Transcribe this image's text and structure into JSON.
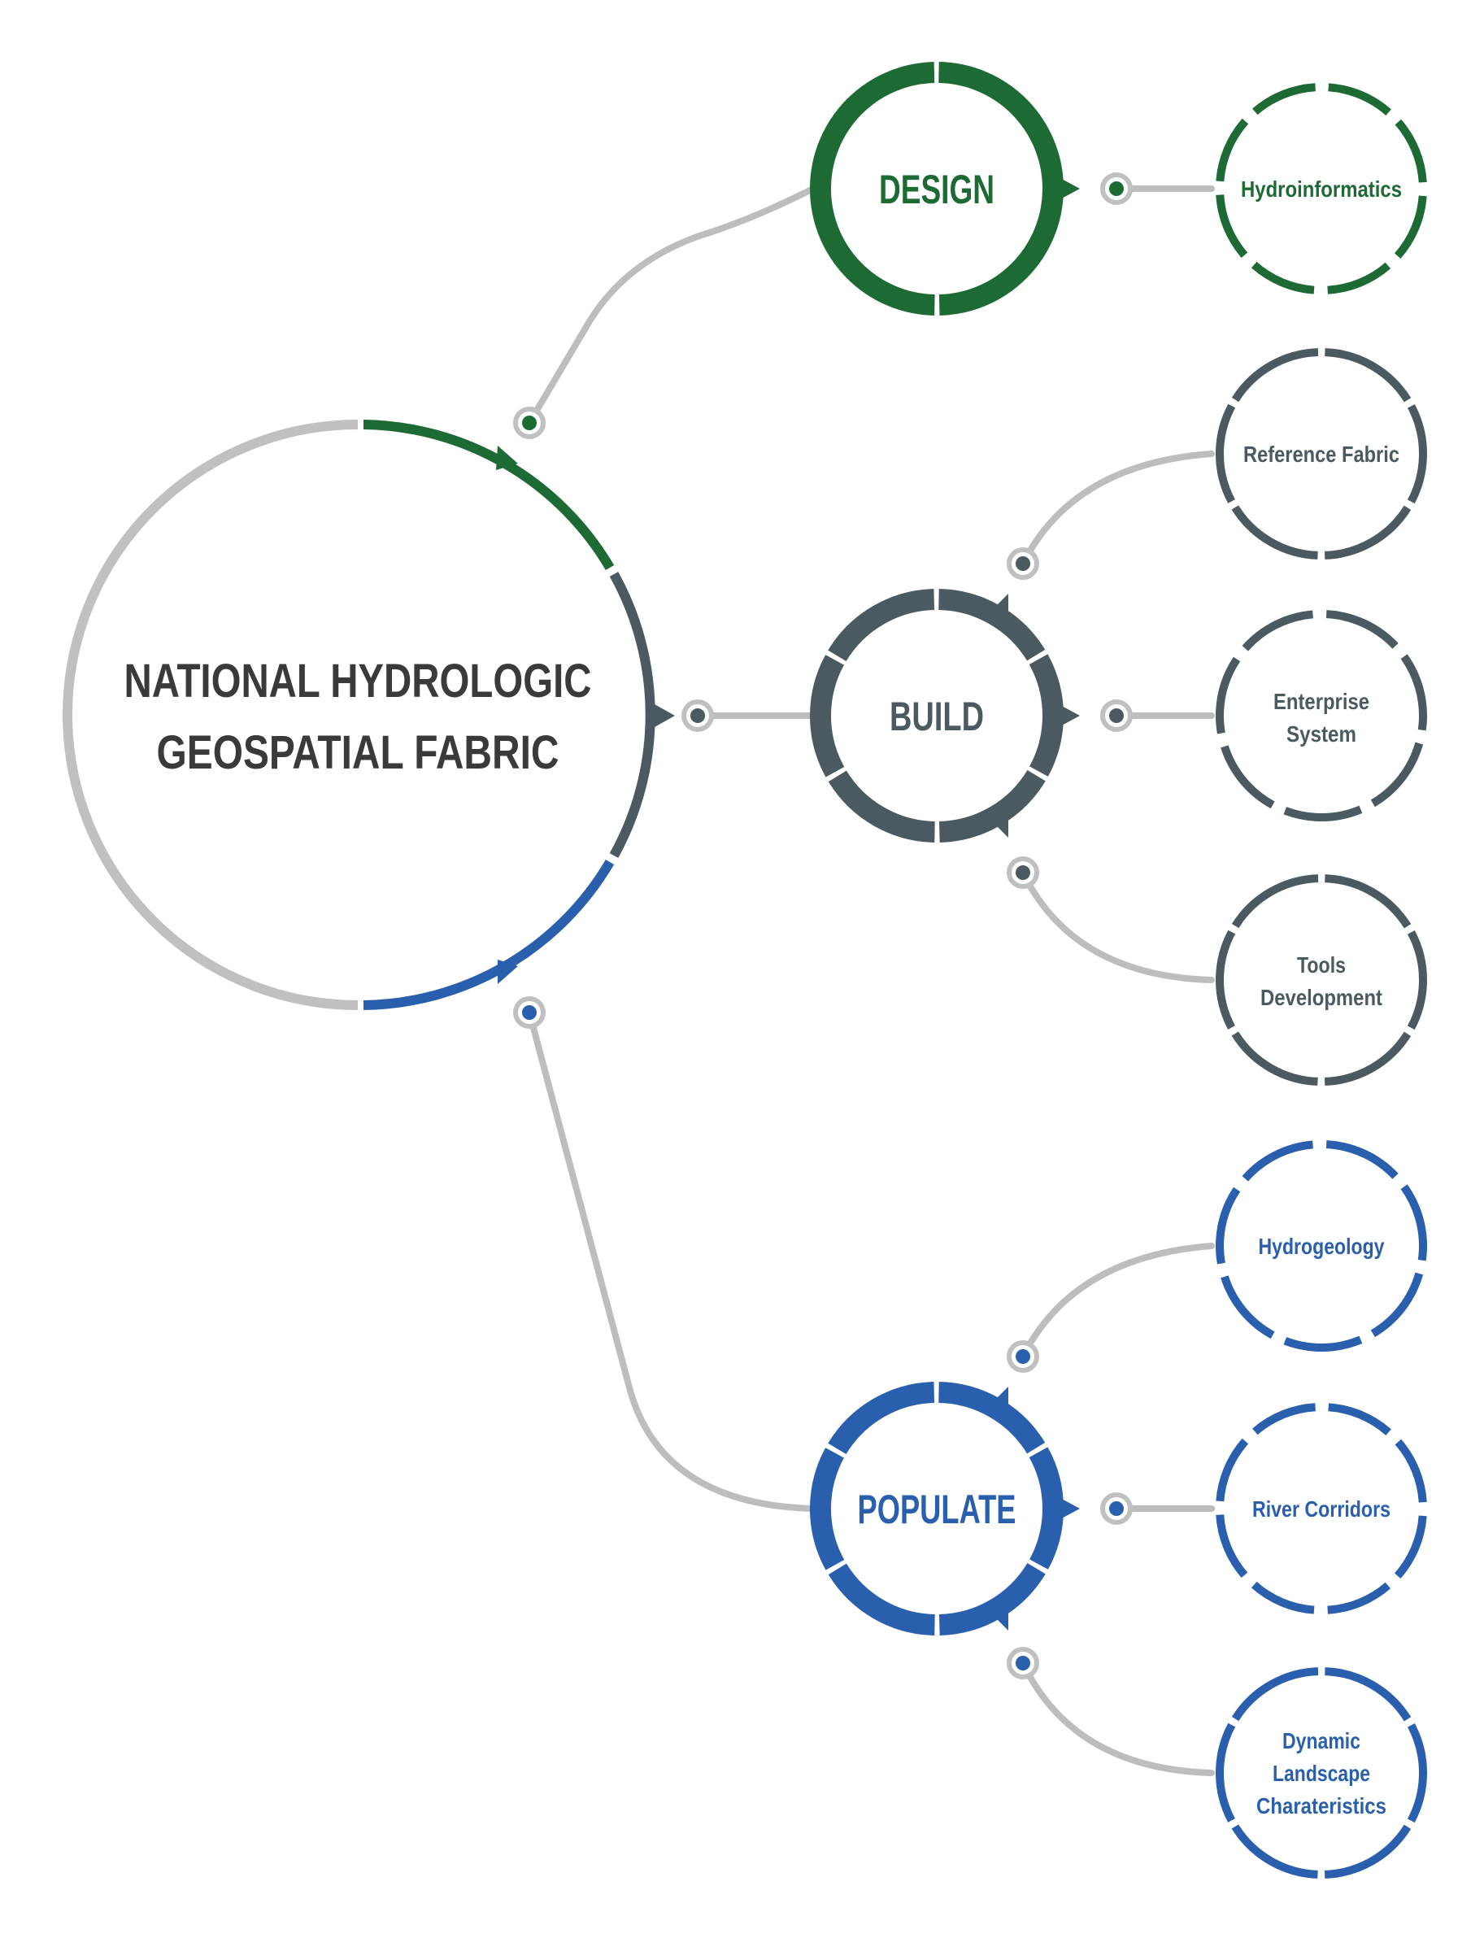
{
  "colors": {
    "design": "#1e6a35",
    "build": "#4a5a60",
    "populate": "#2a5fae",
    "connector": "#bdbdbd",
    "title_text": "#3a3a3a"
  },
  "central": {
    "line1": "NATIONAL HYDROLOGIC",
    "line2": "GEOSPATIAL FABRIC"
  },
  "branches": {
    "design": {
      "label": "DESIGN",
      "children": [
        {
          "lines": [
            "Hydroinformatics"
          ]
        }
      ]
    },
    "build": {
      "label": "BUILD",
      "children": [
        {
          "lines": [
            "Reference Fabric"
          ]
        },
        {
          "lines": [
            "Enterprise",
            "System"
          ]
        },
        {
          "lines": [
            "Tools",
            "Development"
          ]
        }
      ]
    },
    "populate": {
      "label": "POPULATE",
      "children": [
        {
          "lines": [
            "Hydrogeology"
          ]
        },
        {
          "lines": [
            "River Corridors"
          ]
        },
        {
          "lines": [
            "Dynamic",
            "Landscape",
            "Charateristics"
          ]
        }
      ]
    }
  }
}
